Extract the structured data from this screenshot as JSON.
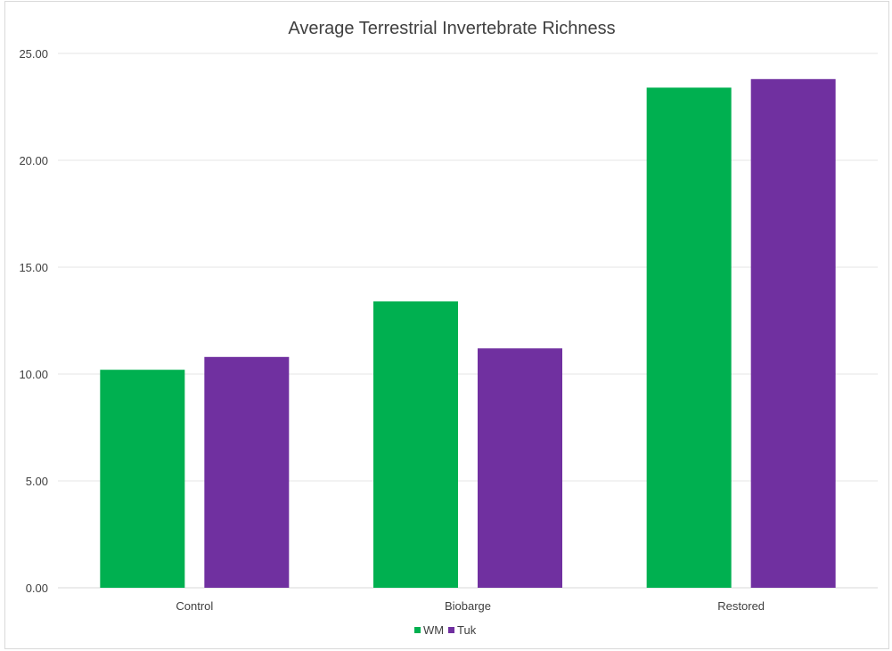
{
  "chart_data": {
    "type": "bar",
    "title": "Average Terrestrial Invertebrate Richness",
    "categories": [
      "Control",
      "Biobarge",
      "Restored"
    ],
    "series": [
      {
        "name": "WM",
        "values": [
          10.2,
          13.4,
          23.4
        ],
        "color": "#00b050"
      },
      {
        "name": "Tuk",
        "values": [
          10.8,
          11.2,
          23.8
        ],
        "color": "#7030a0"
      }
    ],
    "ylim": [
      0,
      25
    ],
    "y_ticks": [
      "0.00",
      "5.00",
      "10.00",
      "15.00",
      "20.00",
      "25.00"
    ],
    "xlabel": "",
    "ylabel": "",
    "grid": true,
    "legend_position": "bottom"
  }
}
